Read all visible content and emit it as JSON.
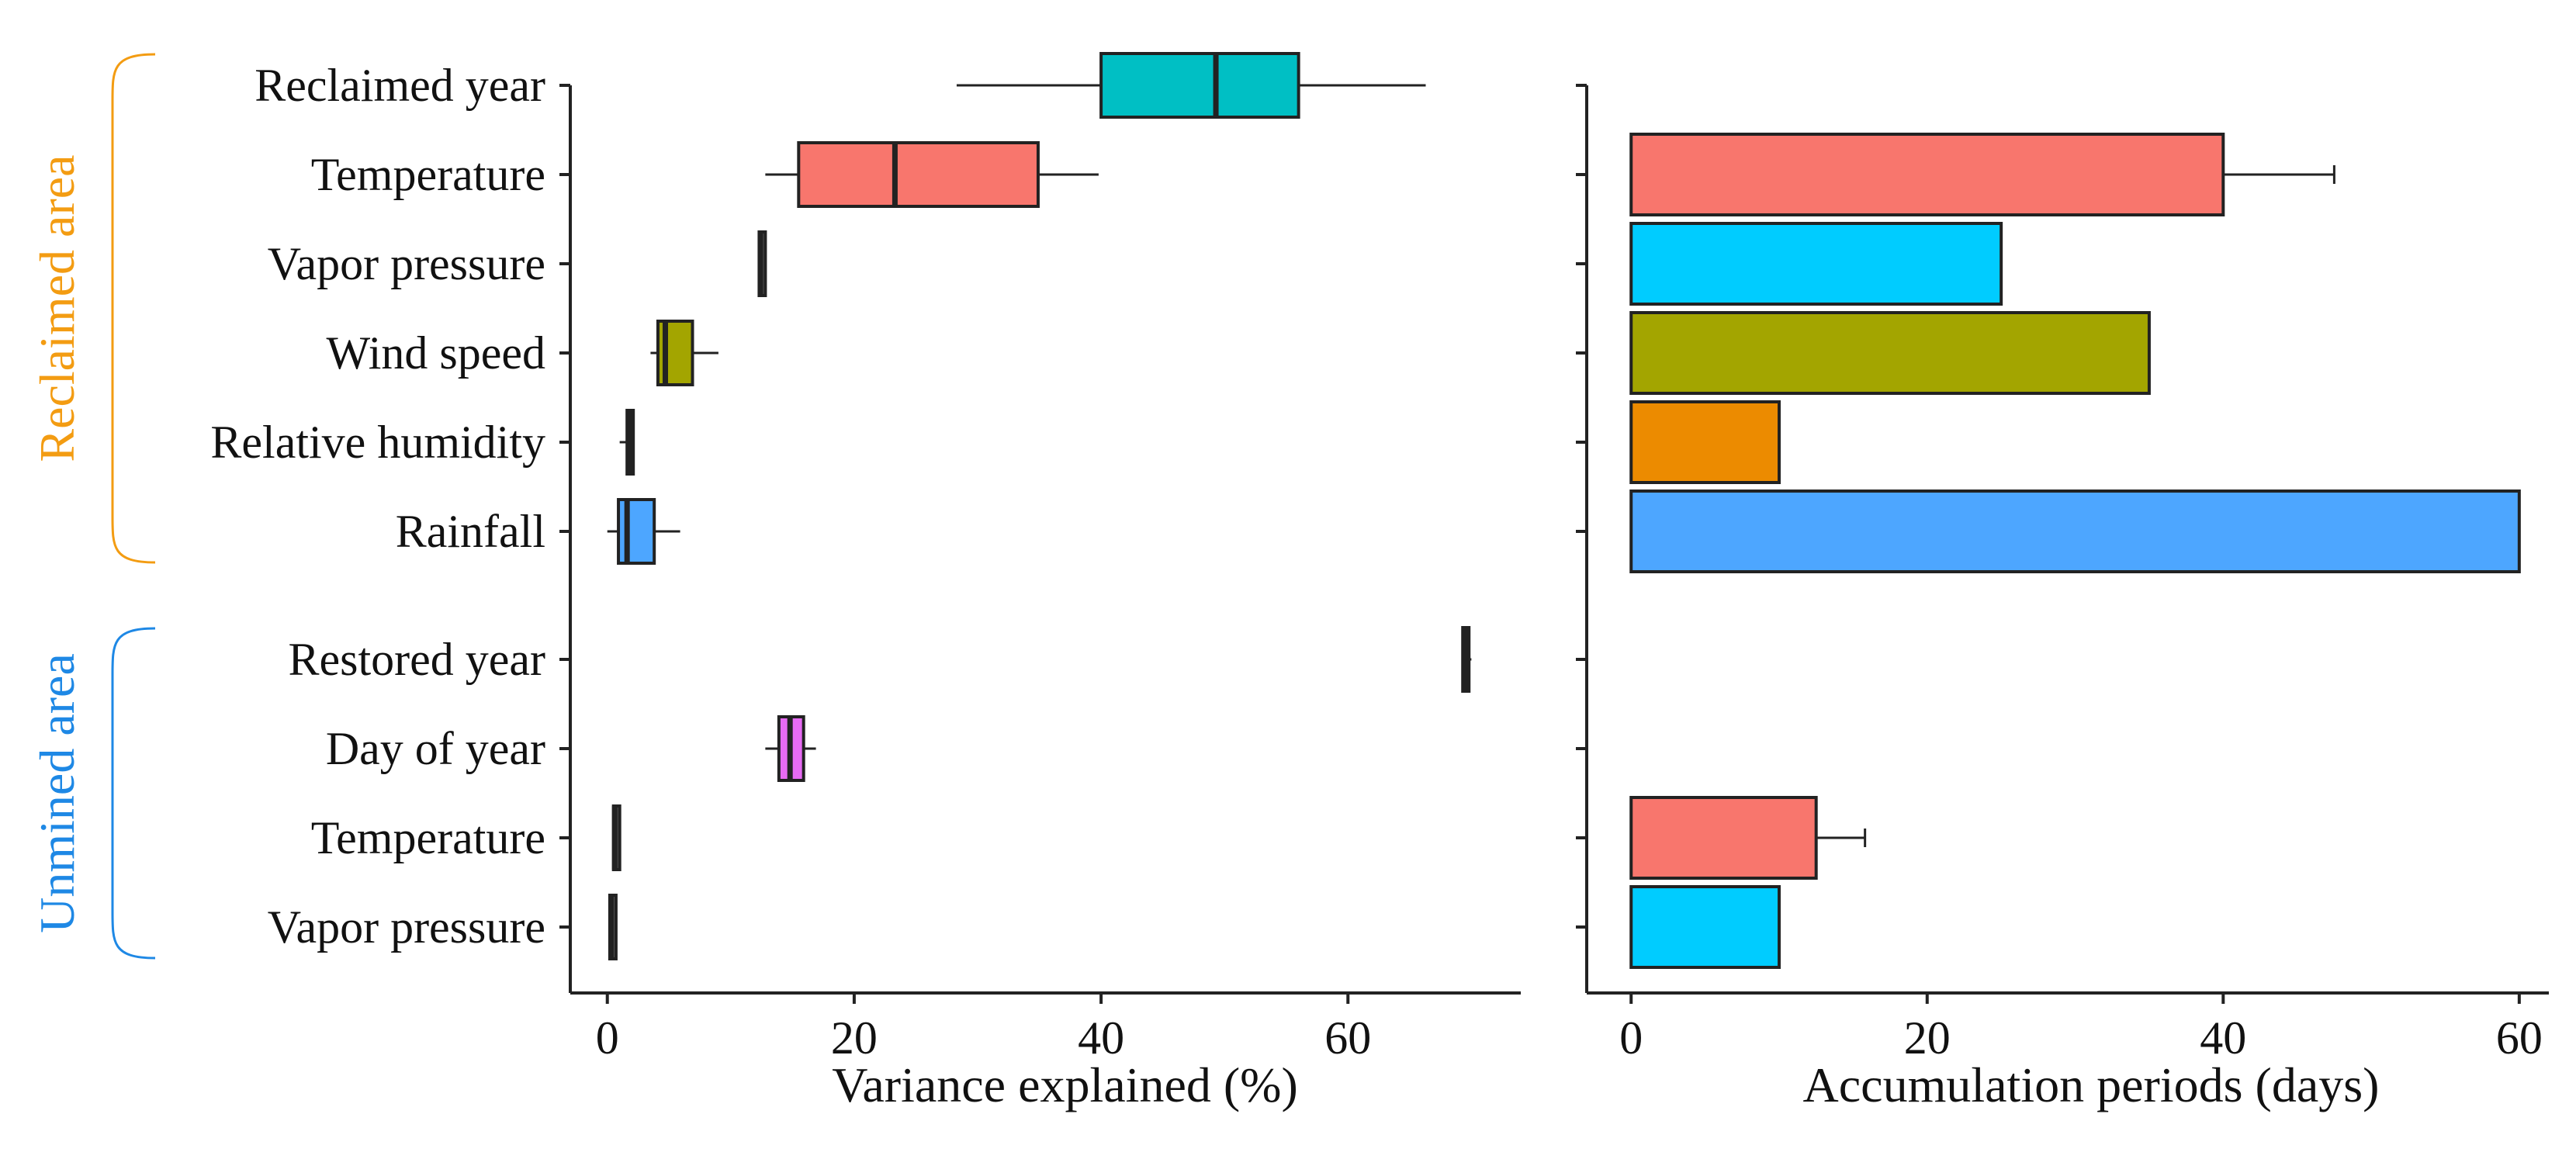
{
  "chart_data": [
    {
      "type": "box",
      "xlabel": "Variance explained (%)",
      "xlim": [
        -3,
        74
      ],
      "xticks": [
        0,
        20,
        40,
        60
      ],
      "groups": [
        {
          "name": "Reclaimed area",
          "color": "#F39C12",
          "categories": [
            0,
            1,
            2,
            3,
            4,
            5
          ]
        },
        {
          "name": "Unmined area",
          "color": "#1E88E5",
          "categories": [
            6,
            7,
            8,
            9
          ]
        }
      ],
      "categories": [
        "Reclaimed year",
        "Temperature",
        "Vapor pressure",
        "Wind speed",
        "Relative humidity",
        "Rainfall",
        "Restored year",
        "Day of year",
        "Temperature",
        "Vapor pressure"
      ],
      "boxes": [
        {
          "min": 28.3,
          "q1": 40.0,
          "median": 49.3,
          "q3": 56.0,
          "max": 66.3,
          "color": "#00BFC4"
        },
        {
          "min": 12.8,
          "q1": 15.5,
          "median": 23.3,
          "q3": 34.9,
          "max": 39.8,
          "color": "#F8766D"
        },
        {
          "min": 12.3,
          "q1": 12.3,
          "median": 12.4,
          "q3": 12.5,
          "max": 12.5,
          "color": "#555555"
        },
        {
          "min": 3.5,
          "q1": 4.1,
          "median": 4.7,
          "q3": 6.9,
          "max": 9.0,
          "color": "#A3A500"
        },
        {
          "min": 1.0,
          "q1": 1.6,
          "median": 1.8,
          "q3": 1.9,
          "max": 2.1,
          "color": "#555555"
        },
        {
          "min": 0.0,
          "q1": 0.9,
          "median": 1.6,
          "q3": 3.8,
          "max": 5.9,
          "color": "#4DA6FF"
        },
        {
          "min": 69.2,
          "q1": 69.3,
          "median": 69.6,
          "q3": 69.8,
          "max": 70.0,
          "color": "#555555"
        },
        {
          "min": 12.8,
          "q1": 13.9,
          "median": 14.8,
          "q3": 15.9,
          "max": 16.9,
          "color": "#E76BF3"
        },
        {
          "min": 0.5,
          "q1": 0.5,
          "median": 0.6,
          "q3": 0.6,
          "max": 0.7,
          "color": "#555555"
        },
        {
          "min": 0.2,
          "q1": 0.2,
          "median": 0.3,
          "q3": 0.3,
          "max": 0.4,
          "color": "#555555"
        }
      ]
    },
    {
      "type": "bar",
      "orientation": "horizontal",
      "xlabel": "Accumulation periods (days)",
      "xlim": [
        -3,
        62
      ],
      "xticks": [
        0,
        20,
        40,
        60
      ],
      "categories": [
        "Reclaimed year",
        "Temperature",
        "Vapor pressure",
        "Wind speed",
        "Relative humidity",
        "Rainfall",
        "Restored year",
        "Day of year",
        "Temperature",
        "Vapor pressure"
      ],
      "values": [
        null,
        40,
        25,
        35,
        10,
        60,
        null,
        null,
        12.5,
        10
      ],
      "errors": [
        null,
        7.5,
        null,
        null,
        null,
        null,
        null,
        null,
        3.3,
        null
      ],
      "colors": [
        null,
        "#F8766D",
        "#00CCFF",
        "#A3A500",
        "#EC8B00",
        "#4DA6FF",
        null,
        null,
        "#F8766D",
        "#00CCFF"
      ]
    }
  ]
}
